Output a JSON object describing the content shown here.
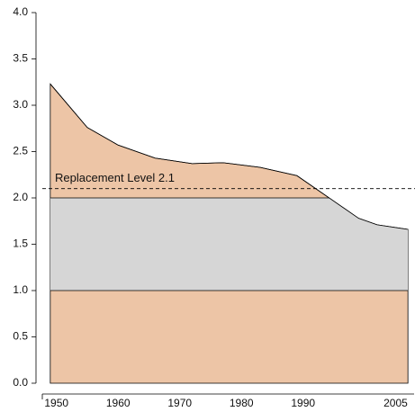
{
  "chart_data": {
    "type": "area",
    "x": [
      1949,
      1955,
      1960,
      1966,
      1972,
      1977,
      1983,
      1989,
      1994,
      1999,
      2002,
      2007
    ],
    "values": [
      3.23,
      2.76,
      2.57,
      2.43,
      2.37,
      2.38,
      2.33,
      2.24,
      2.01,
      1.78,
      1.71,
      1.66
    ],
    "color": "#edc5a6",
    "bands": [
      {
        "from": 1.0,
        "to": 2.0,
        "color": "#d6d6d6"
      }
    ],
    "replacement": 2.1,
    "annotation": "Replacement Level 2.1",
    "xlim": [
      1948,
      2008
    ],
    "xticks": [
      1950,
      1960,
      1970,
      1980,
      1990,
      2005
    ],
    "ylim": [
      0,
      4
    ],
    "yticks": [
      {
        "value": 0,
        "label": "0.0"
      },
      0.5,
      {
        "value": 1,
        "label": "1.0"
      },
      1.5,
      {
        "value": 2,
        "label": "2.0"
      },
      2.5,
      {
        "value": 3,
        "label": "3.0"
      },
      3.5,
      {
        "value": 4,
        "label": "4.0"
      }
    ]
  }
}
